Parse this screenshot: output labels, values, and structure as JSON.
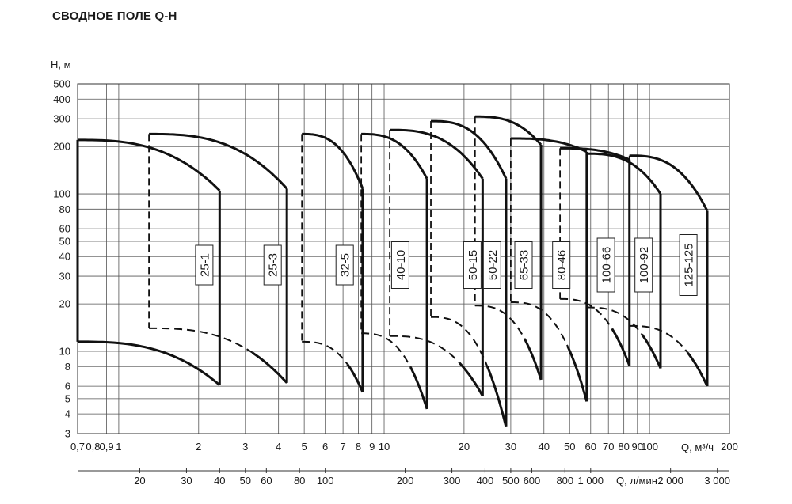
{
  "chart_data": {
    "type": "line",
    "title": "СВОДНОЕ ПОЛЕ Q-H",
    "ylabel": "H, м",
    "xlabel": "Q, м³/ч",
    "x2label": "Q, л/мин",
    "yscale": "log",
    "xscale": "log",
    "xlim": [
      0.7,
      200
    ],
    "ylim": [
      3,
      500
    ],
    "grid": true,
    "x_ticks": [
      {
        "v": 0.7,
        "t": "0,7"
      },
      {
        "v": 0.8,
        "t": "0,8"
      },
      {
        "v": 0.9,
        "t": "0,9"
      },
      {
        "v": 1,
        "t": "1"
      },
      {
        "v": 2,
        "t": "2"
      },
      {
        "v": 3,
        "t": "3"
      },
      {
        "v": 4,
        "t": "4"
      },
      {
        "v": 5,
        "t": "5"
      },
      {
        "v": 6,
        "t": "6"
      },
      {
        "v": 7,
        "t": "7"
      },
      {
        "v": 8,
        "t": "8"
      },
      {
        "v": 9,
        "t": "9"
      },
      {
        "v": 10,
        "t": "10"
      },
      {
        "v": 20,
        "t": "20"
      },
      {
        "v": 30,
        "t": "30"
      },
      {
        "v": 40,
        "t": "40"
      },
      {
        "v": 50,
        "t": "50"
      },
      {
        "v": 60,
        "t": "60"
      },
      {
        "v": 70,
        "t": "70"
      },
      {
        "v": 80,
        "t": "80"
      },
      {
        "v": 90,
        "t": "90"
      },
      {
        "v": 100,
        "t": "100"
      },
      {
        "v": 200,
        "t": "200"
      }
    ],
    "x2_ticks": [
      {
        "v": 20,
        "t": "20"
      },
      {
        "v": 30,
        "t": "30"
      },
      {
        "v": 40,
        "t": "40"
      },
      {
        "v": 50,
        "t": "50"
      },
      {
        "v": 60,
        "t": "60"
      },
      {
        "v": 80,
        "t": "80"
      },
      {
        "v": 100,
        "t": "100"
      },
      {
        "v": 200,
        "t": "200"
      },
      {
        "v": 300,
        "t": "300"
      },
      {
        "v": 400,
        "t": "400"
      },
      {
        "v": 500,
        "t": "500"
      },
      {
        "v": 600,
        "t": "600"
      },
      {
        "v": 800,
        "t": "800"
      },
      {
        "v": 1000,
        "t": "1 000"
      },
      {
        "v": 2000,
        "t": "2 000"
      },
      {
        "v": 3000,
        "t": "3 000"
      }
    ],
    "y_ticks": [
      {
        "v": 3,
        "t": "3"
      },
      {
        "v": 4,
        "t": "4"
      },
      {
        "v": 5,
        "t": "5"
      },
      {
        "v": 6,
        "t": "6"
      },
      {
        "v": 8,
        "t": "8"
      },
      {
        "v": 10,
        "t": "10"
      },
      {
        "v": 20,
        "t": "20"
      },
      {
        "v": 30,
        "t": "30"
      },
      {
        "v": 40,
        "t": "40"
      },
      {
        "v": 50,
        "t": "50"
      },
      {
        "v": 60,
        "t": "60"
      },
      {
        "v": 80,
        "t": "80"
      },
      {
        "v": 100,
        "t": "100"
      },
      {
        "v": 200,
        "t": "200"
      },
      {
        "v": 300,
        "t": "300"
      },
      {
        "v": 400,
        "t": "400"
      },
      {
        "v": 500,
        "t": "500"
      }
    ],
    "series": [
      {
        "name": "25-1",
        "qmin": 0.7,
        "qmax": 2.4,
        "hmax_top": 220,
        "hend_top": 105,
        "hmax_bot": 11.5,
        "hend_bot": 6.1,
        "label_q": 2.1
      },
      {
        "name": "25-3",
        "qmin": 1.3,
        "qmax": 4.3,
        "hmax_top": 240,
        "hend_top": 108,
        "hmax_bot": 14,
        "hend_bot": 6.3,
        "label_q": 3.8
      },
      {
        "name": "32-5",
        "qmin": 4.9,
        "qmax": 8.3,
        "hmax_top": 240,
        "hend_top": 108,
        "hmax_bot": 11.5,
        "hend_bot": 5.5,
        "label_q": 7.1
      },
      {
        "name": "40-10",
        "qmin": 8.2,
        "qmax": 14.5,
        "hmax_top": 240,
        "hend_top": 125,
        "hmax_bot": 13,
        "hend_bot": 4.3,
        "label_q": 11.5
      },
      {
        "name": "50-15",
        "qmin": 10.5,
        "qmax": 23.5,
        "hmax_top": 255,
        "hend_top": 125,
        "hmax_bot": 12.5,
        "hend_bot": 5.2,
        "label_q": 21.5
      },
      {
        "name": "50-22",
        "qmin": 15,
        "qmax": 28.8,
        "hmax_top": 290,
        "hend_top": 125,
        "hmax_bot": 16.5,
        "hend_bot": 3.3,
        "label_q": 25.5
      },
      {
        "name": "65-33",
        "qmin": 22,
        "qmax": 39,
        "hmax_top": 310,
        "hend_top": 205,
        "hmax_bot": 19.5,
        "hend_bot": 6.6,
        "label_q": 33.5
      },
      {
        "name": "80-46",
        "qmin": 30,
        "qmax": 58,
        "hmax_top": 225,
        "hend_top": 185,
        "hmax_bot": 20.5,
        "hend_bot": 4.8,
        "label_q": 46.5
      },
      {
        "name": "100-66",
        "qmin": 46,
        "qmax": 84,
        "hmax_top": 195,
        "hend_top": 165,
        "hmax_bot": 21.5,
        "hend_bot": 8.1,
        "label_q": 68.5
      },
      {
        "name": "100-92",
        "qmin": 58,
        "qmax": 110,
        "hmax_top": 180,
        "hend_top": 100,
        "hmax_bot": 19,
        "hend_bot": 7.8,
        "label_q": 95
      },
      {
        "name": "125-125",
        "qmin": 84,
        "qmax": 165,
        "hmax_top": 175,
        "hend_top": 78,
        "hmax_bot": 14.5,
        "hend_bot": 6,
        "label_q": 140
      }
    ]
  }
}
